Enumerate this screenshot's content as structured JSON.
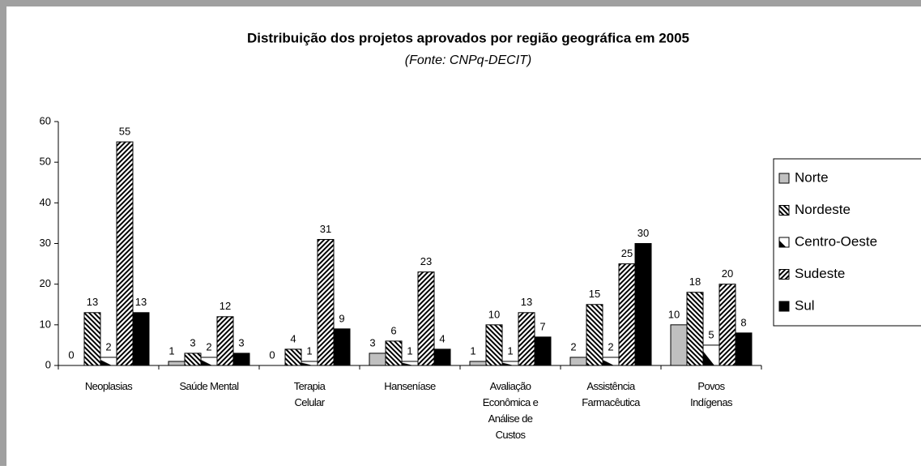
{
  "chart_data": {
    "type": "bar",
    "title": "Distribuição dos projetos aprovados por região geográfica em 2005",
    "subtitle": "(Fonte: CNPq-DECIT)",
    "categories": [
      [
        "Neoplasias"
      ],
      [
        "Saúde Mental"
      ],
      [
        "Terapia",
        "Celular"
      ],
      [
        "Hanseníase"
      ],
      [
        "Avaliação",
        "Econômica e",
        "Análise de",
        "Custos"
      ],
      [
        "Assistência",
        "Farmacêutica"
      ],
      [
        "Povos",
        "Indígenas"
      ]
    ],
    "series": [
      {
        "name": "Norte",
        "color": "#c0c0c0",
        "pattern": "solid",
        "values": [
          0,
          1,
          0,
          3,
          1,
          2,
          10
        ]
      },
      {
        "name": "Nordeste",
        "color": "#000000",
        "pattern": "hatch-back",
        "values": [
          13,
          3,
          4,
          6,
          10,
          15,
          18
        ]
      },
      {
        "name": "Centro-Oeste",
        "color": "#000000",
        "pattern": "half",
        "values": [
          2,
          2,
          1,
          1,
          1,
          2,
          5
        ]
      },
      {
        "name": "Sudeste",
        "color": "#000000",
        "pattern": "hatch-forward",
        "values": [
          55,
          12,
          31,
          23,
          13,
          25,
          20
        ]
      },
      {
        "name": "Sul",
        "color": "#000000",
        "pattern": "solid",
        "values": [
          13,
          3,
          9,
          4,
          7,
          30,
          8
        ]
      }
    ],
    "ylim": [
      0,
      60
    ],
    "yticks": [
      0,
      10,
      20,
      30,
      40,
      50,
      60
    ],
    "grid": false,
    "legend": "right"
  }
}
